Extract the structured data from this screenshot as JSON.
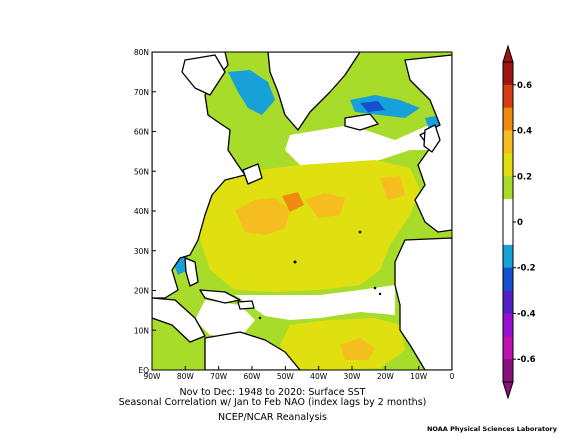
{
  "map": {
    "lat_labels": [
      "EQ",
      "10N",
      "20N",
      "30N",
      "40N",
      "50N",
      "60N",
      "70N",
      "80N"
    ],
    "lon_labels": [
      "90W",
      "80W",
      "70W",
      "60W",
      "50W",
      "40W",
      "30W",
      "20W",
      "10W",
      "0"
    ],
    "lat_range": [
      0,
      80
    ],
    "lon_range": [
      -90,
      0
    ]
  },
  "colorbar": {
    "labels": [
      "0.6",
      "0.4",
      "0.2",
      "0",
      "-0.2",
      "-0.4",
      "-0.6"
    ],
    "values": [
      0.6,
      0.4,
      0.2,
      0,
      -0.2,
      -0.4,
      -0.6
    ],
    "colors": [
      "#a01414",
      "#d83c14",
      "#f08a10",
      "#f5bd1f",
      "#e0e010",
      "#a8dc2a",
      "#ffffff",
      "#ffffff",
      "#18a0d8",
      "#1450d0",
      "#5020c8",
      "#9810d0",
      "#c010b0",
      "#88107a"
    ]
  },
  "caption": {
    "line1": "Nov to Dec: 1948 to 2020: Surface SST",
    "line2": "Seasonal Correlation w/ Jan to Feb NAO (index lags by 2 months)",
    "line3": "NCEP/NCAR Reanalysis"
  },
  "credit": "NOAA Physical Sciences Laboratory"
}
